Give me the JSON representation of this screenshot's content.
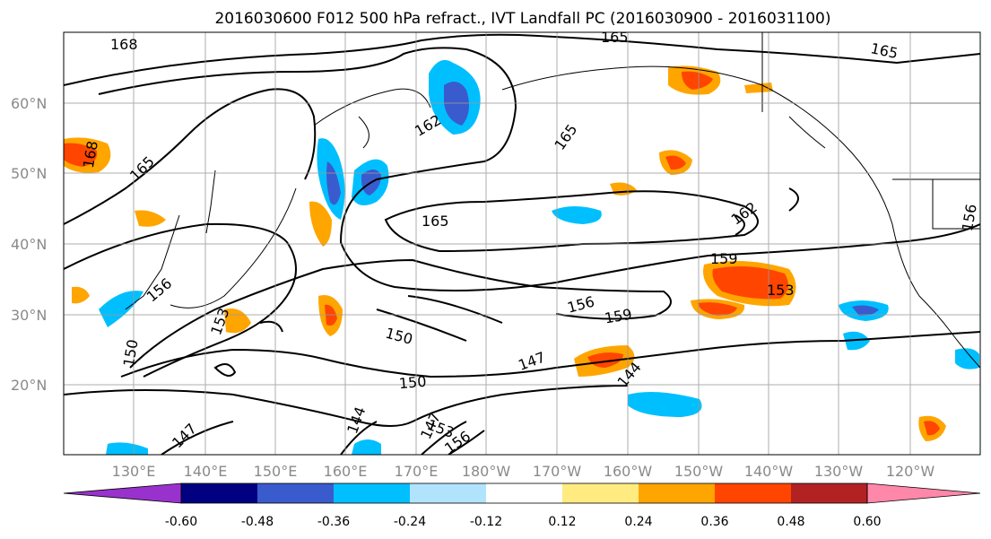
{
  "title": "2016030600 F012 500 hPa refract., IVT Landfall PC (2016030900 - 2016031100)",
  "lon_labels": [
    "130°E",
    "140°E",
    "150°E",
    "160°E",
    "170°E",
    "180°W",
    "170°W",
    "160°W",
    "150°W",
    "140°W",
    "130°W",
    "120°W"
  ],
  "lat_labels": [
    "60°N",
    "50°N",
    "40°N",
    "30°N",
    "20°N"
  ],
  "colorbar": {
    "colors": [
      "#9932cc",
      "#000080",
      "#3a5bcd",
      "#00bfff",
      "#b2e3fd",
      "#ffffff",
      "#ffeb80",
      "#ffa500",
      "#ff4500",
      "#b22222",
      "#ff88aa"
    ],
    "tick_labels": [
      "-0.60",
      "-0.48",
      "-0.36",
      "-0.24",
      "-0.12",
      "0.12",
      "0.24",
      "0.36",
      "0.48",
      "0.60"
    ]
  },
  "contour_labels": [
    "168",
    "165",
    "165",
    "162",
    "165",
    "168",
    "165",
    "165",
    "162",
    "159",
    "153",
    "156",
    "159",
    "156",
    "150",
    "147",
    "144",
    "150",
    "153",
    "150",
    "144",
    "147",
    "147",
    "153",
    "156",
    "156"
  ],
  "colors": {
    "contour": "#000000",
    "grid": "#999999"
  }
}
